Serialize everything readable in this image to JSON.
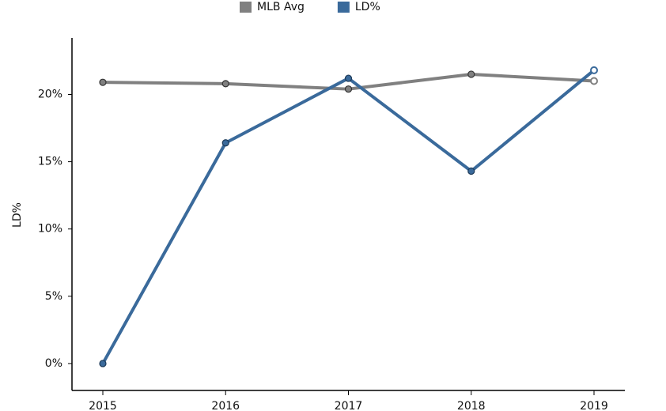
{
  "chart_data": {
    "type": "line",
    "y_label": "LD%",
    "categories": [
      "2015",
      "2016",
      "2017",
      "2018",
      "2019"
    ],
    "series": [
      {
        "name": "MLB Avg",
        "color": "#808080",
        "values": [
          20.9,
          20.8,
          20.4,
          21.5,
          21.0
        ]
      },
      {
        "name": "LD%",
        "color": "#3a6a9b",
        "values": [
          0,
          16.4,
          21.2,
          14.3,
          21.8
        ]
      }
    ],
    "ylim": [
      -2,
      24.2
    ],
    "yticks": [
      {
        "value": 0,
        "label": "0%"
      },
      {
        "value": 5,
        "label": "5%"
      },
      {
        "value": 10,
        "label": "10%"
      },
      {
        "value": 15,
        "label": "15%"
      },
      {
        "value": 20,
        "label": "20%"
      }
    ],
    "legend": "top"
  }
}
